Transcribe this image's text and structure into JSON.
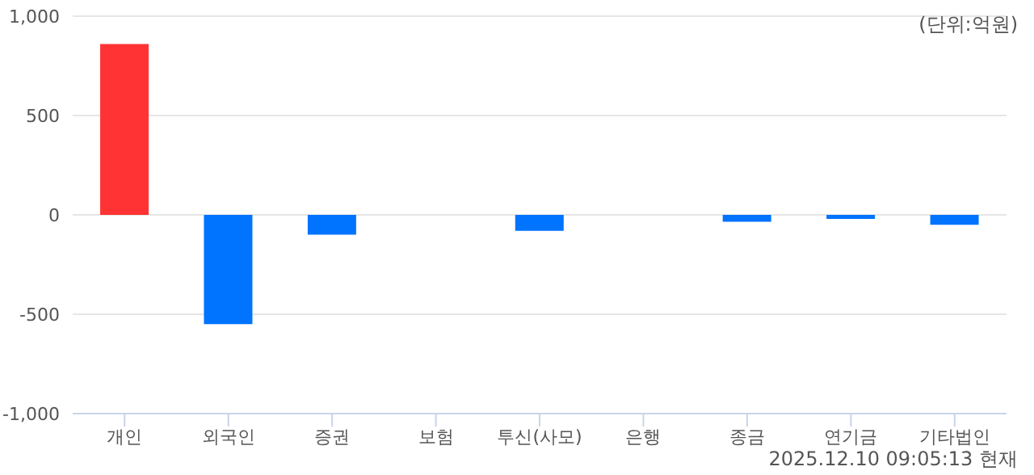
{
  "chart_data": {
    "type": "bar",
    "categories": [
      "개인",
      "외국인",
      "증권",
      "보험",
      "투신(사모)",
      "은행",
      "종금",
      "연기금",
      "기타법인"
    ],
    "values": [
      860,
      -550,
      -100,
      0,
      -80,
      0,
      -35,
      -20,
      -50
    ],
    "colors": [
      "#ff3333",
      "#0073ff",
      "#0073ff",
      "#0073ff",
      "#0073ff",
      "#0073ff",
      "#0073ff",
      "#0073ff",
      "#0073ff"
    ],
    "ylim": [
      -1000,
      1000
    ],
    "yticks": [
      {
        "value": -1000,
        "label": "-1,000"
      },
      -500,
      0,
      500,
      {
        "value": 1000,
        "label": "1,000"
      }
    ],
    "grid": "y",
    "annotations": [
      "(단위:억원)",
      "2025.12.10 09:05:13 현재"
    ]
  }
}
